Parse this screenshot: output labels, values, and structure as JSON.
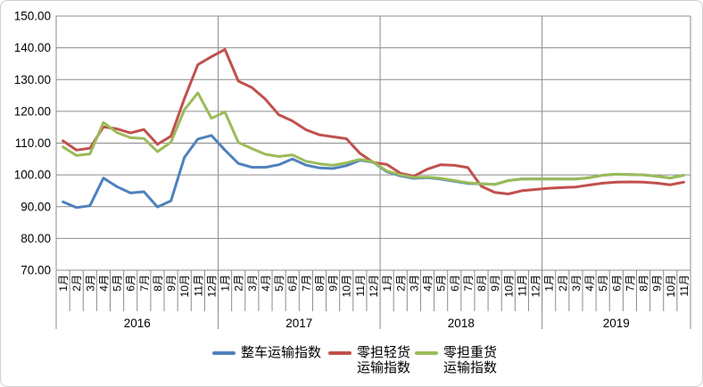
{
  "chart_data": {
    "type": "line",
    "title": "",
    "xlabel": "",
    "ylabel": "",
    "ylim": [
      70,
      150
    ],
    "ytick_step": 10,
    "ytick_labels": [
      "70.00",
      "80.00",
      "90.00",
      "100.00",
      "110.00",
      "120.00",
      "130.00",
      "140.00",
      "150.00"
    ],
    "grid": true,
    "legend_position": "bottom",
    "years": [
      {
        "label": "2016",
        "months": 12
      },
      {
        "label": "2017",
        "months": 12
      },
      {
        "label": "2018",
        "months": 12
      },
      {
        "label": "2019",
        "months": 11
      }
    ],
    "categories": [
      "1月",
      "2月",
      "3月",
      "4月",
      "5月",
      "6月",
      "7月",
      "8月",
      "9月",
      "10月",
      "11月",
      "12月",
      "1月",
      "2月",
      "3月",
      "4月",
      "5月",
      "6月",
      "7月",
      "8月",
      "9月",
      "10月",
      "11月",
      "12月",
      "1月",
      "2月",
      "3月",
      "4月",
      "5月",
      "6月",
      "7月",
      "8月",
      "9月",
      "10月",
      "11月",
      "12月",
      "1月",
      "2月",
      "3月",
      "4月",
      "5月",
      "6月",
      "7月",
      "8月",
      "9月",
      "10月",
      "11月"
    ],
    "series": [
      {
        "name": "整车运输指数",
        "color": "#4F81BD",
        "values": [
          91.5,
          89.7,
          90.3,
          99.0,
          96.3,
          94.3,
          94.7,
          89.9,
          91.8,
          105.5,
          111.3,
          112.4,
          107.8,
          103.6,
          102.4,
          102.4,
          103.2,
          105.0,
          103.1,
          102.2,
          102.0,
          102.9,
          104.6,
          104.0,
          101.0,
          99.7,
          98.9,
          99.1,
          98.7,
          98.0,
          97.3,
          97.2,
          97.0,
          98.2,
          98.7,
          98.7,
          98.7,
          98.7,
          98.7,
          99.1,
          99.9,
          100.2,
          100.1,
          100.0,
          99.6,
          99.0,
          99.9
        ]
      },
      {
        "name": "零担轻货运输指数",
        "color": "#C0504D",
        "values": [
          110.7,
          107.8,
          108.4,
          115.1,
          114.5,
          113.2,
          114.3,
          109.6,
          112.2,
          124.0,
          134.7,
          137.2,
          139.5,
          129.5,
          127.5,
          123.8,
          118.9,
          117.0,
          114.2,
          112.6,
          112.0,
          111.4,
          106.8,
          103.9,
          103.3,
          100.5,
          99.6,
          101.8,
          103.2,
          103.0,
          102.3,
          96.4,
          94.5,
          94.0,
          95.0,
          95.4,
          95.8,
          96.0,
          96.2,
          96.8,
          97.4,
          97.7,
          97.8,
          97.7,
          97.4,
          96.9,
          97.7
        ]
      },
      {
        "name": "零担重货运输指数",
        "color": "#9BBB59",
        "values": [
          108.8,
          106.1,
          106.6,
          116.5,
          113.3,
          111.7,
          111.5,
          107.3,
          110.3,
          120.5,
          125.8,
          117.8,
          119.8,
          110.2,
          108.3,
          106.5,
          105.8,
          106.3,
          104.3,
          103.5,
          103.0,
          103.8,
          104.9,
          104.1,
          101.2,
          100.0,
          99.2,
          99.3,
          98.9,
          98.2,
          97.5,
          97.2,
          97.0,
          98.2,
          98.7,
          98.7,
          98.7,
          98.7,
          98.7,
          99.1,
          99.9,
          100.2,
          100.1,
          100.0,
          99.6,
          99.0,
          99.9
        ]
      }
    ],
    "legend": [
      {
        "label_lines": [
          "整车运输指数"
        ],
        "color": "#4F81BD"
      },
      {
        "label_lines": [
          "零担轻货",
          "运输指数"
        ],
        "color": "#C0504D"
      },
      {
        "label_lines": [
          "零担重货",
          "运输指数"
        ],
        "color": "#9BBB59"
      }
    ],
    "colors": {
      "gridline": "#8C8C8C",
      "axis_text": "#000000",
      "background": "#FFFFFF"
    }
  }
}
